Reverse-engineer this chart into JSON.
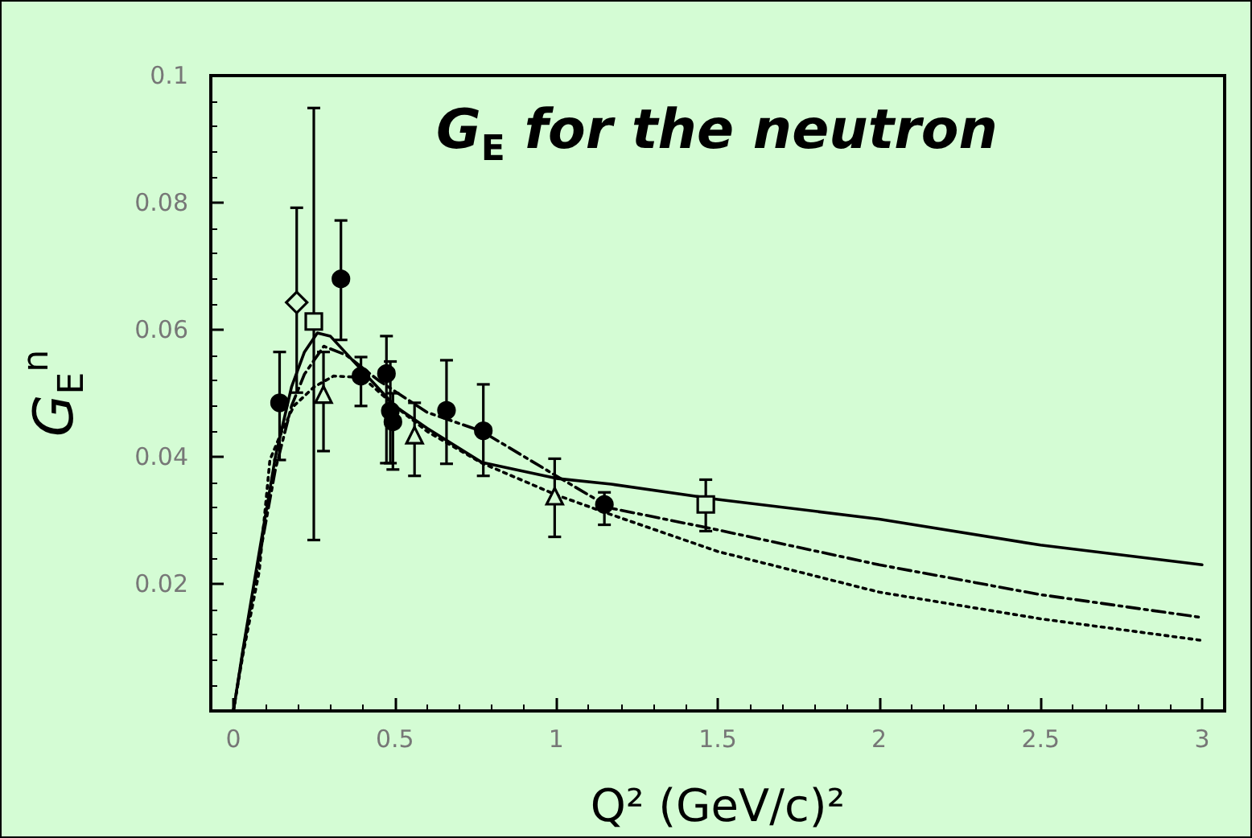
{
  "chart_data": {
    "type": "scatter",
    "title": "G$_{E}$ for the neutron",
    "xlabel": "Q² (GeV/c)²",
    "ylabel": "G$_{E}$$^{n}$",
    "xlim": [
      -0.07,
      3.07
    ],
    "ylim": [
      0,
      0.1
    ],
    "xticks": [
      0,
      0.5,
      1,
      1.5,
      2,
      2.5,
      3
    ],
    "yticks": [
      0.02,
      0.04,
      0.06,
      0.08,
      0.1
    ],
    "grid": false,
    "series": [
      {
        "marker": "circle",
        "color": "#000000",
        "x": [
          0.143,
          0.333,
          0.395,
          0.474,
          0.486,
          0.494,
          0.66,
          0.774,
          1.149
        ],
        "values": [
          0.0485,
          0.068,
          0.0527,
          0.0531,
          0.0472,
          0.0455,
          0.0473,
          0.0441,
          0.0325
        ],
        "errors": [
          [
            0.0395,
            0.0565
          ],
          [
            0.0584,
            0.0772
          ],
          [
            0.048,
            0.0557
          ],
          [
            0.039,
            0.059
          ],
          [
            0.039,
            0.055
          ],
          [
            0.038,
            0.05
          ],
          [
            0.0389,
            0.0552
          ],
          [
            0.037,
            0.0514
          ],
          [
            0.0293,
            0.0344
          ]
        ]
      },
      {
        "marker": "diamond",
        "color": "#000000",
        "x": [
          0.196
        ],
        "values": [
          0.0643
        ],
        "errors": [
          [
            0.0501,
            0.0792
          ]
        ]
      },
      {
        "marker": "square",
        "color": "#000000",
        "x": [
          0.249,
          1.463
        ],
        "values": [
          0.0613,
          0.0325
        ],
        "errors": [
          [
            0.0269,
            0.0949
          ],
          [
            0.0283,
            0.0364
          ]
        ]
      },
      {
        "marker": "triangle",
        "color": "#000000",
        "x": [
          0.279,
          0.561,
          0.995
        ],
        "values": [
          0.0498,
          0.0434,
          0.0338
        ],
        "errors": [
          [
            0.0409,
            0.0565
          ],
          [
            0.037,
            0.0485
          ],
          [
            0.0274,
            0.0397
          ]
        ]
      },
      {
        "type": "line",
        "line_style": "solid",
        "color": "#000000",
        "x": [
          0,
          0.03,
          0.08,
          0.13,
          0.18,
          0.22,
          0.26,
          0.3,
          0.4,
          0.5,
          0.6,
          0.77,
          1.0,
          1.17,
          1.5,
          2.0,
          2.5,
          3.0
        ],
        "values": [
          0,
          0.0098,
          0.025,
          0.04,
          0.051,
          0.0565,
          0.0595,
          0.059,
          0.0535,
          0.048,
          0.0445,
          0.0391,
          0.0366,
          0.0357,
          0.0333,
          0.0302,
          0.0261,
          0.023
        ]
      },
      {
        "type": "line",
        "line_style": "dashed",
        "color": "#000000",
        "x": [
          0,
          0.03,
          0.08,
          0.13,
          0.18,
          0.22,
          0.28,
          0.35,
          0.45,
          0.6,
          0.77,
          1.0,
          1.17,
          1.5,
          2.0,
          2.5,
          3.0
        ],
        "values": [
          0,
          0.0095,
          0.024,
          0.038,
          0.048,
          0.053,
          0.0574,
          0.056,
          0.052,
          0.047,
          0.044,
          0.037,
          0.0319,
          0.0285,
          0.023,
          0.0183,
          0.0147
        ]
      },
      {
        "type": "line",
        "line_style": "dotted",
        "color": "#000000",
        "x": [
          0,
          0.03,
          0.08,
          0.113,
          0.15,
          0.187,
          0.25,
          0.31,
          0.4,
          0.5,
          0.6,
          0.77,
          1.0,
          1.17,
          1.5,
          2.0,
          2.5,
          3.0
        ],
        "values": [
          0,
          0.009,
          0.022,
          0.0395,
          0.044,
          0.048,
          0.051,
          0.0527,
          0.0525,
          0.048,
          0.044,
          0.039,
          0.034,
          0.0309,
          0.0251,
          0.0187,
          0.0145,
          0.0111
        ]
      }
    ]
  }
}
